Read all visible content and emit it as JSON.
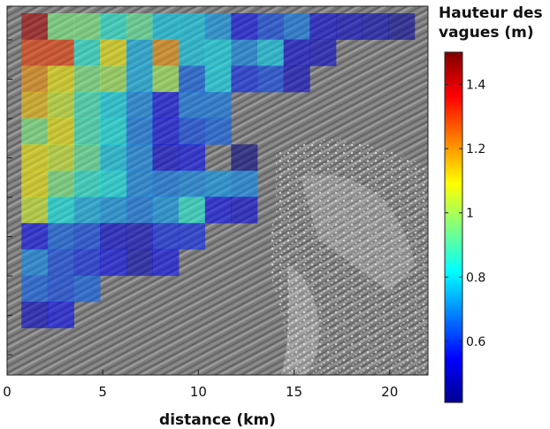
{
  "chart_data": {
    "type": "heatmap",
    "xlabel": "distance (km)",
    "ylabel": "",
    "xlim": [
      0,
      22
    ],
    "x_ticks": [
      0,
      5,
      10,
      15,
      20
    ],
    "cell_size_km": 1.37,
    "colorbar": {
      "title_lines": [
        "Hauteur des",
        "vagues (m)"
      ],
      "range": [
        0.41,
        1.5
      ],
      "ticks": [
        0.6,
        0.8,
        1,
        1.2,
        1.4
      ],
      "tick_labels": [
        "0.6",
        "0.8",
        "1",
        "1.2",
        "1.4"
      ],
      "colormap": "jet"
    },
    "grid_rows_top_to_bottom": [
      [
        1.45,
        0.95,
        0.95,
        0.85,
        0.92,
        0.78,
        0.78,
        0.72,
        0.55,
        0.62,
        0.68,
        0.52,
        0.5,
        0.48,
        0.45
      ],
      [
        1.3,
        1.3,
        0.85,
        1.1,
        0.75,
        1.2,
        0.78,
        0.8,
        0.7,
        0.78,
        0.52,
        0.5,
        null,
        null,
        null
      ],
      [
        1.2,
        1.1,
        0.95,
        1.0,
        0.75,
        1.0,
        0.65,
        0.8,
        0.58,
        0.62,
        0.5,
        null,
        null,
        null,
        null
      ],
      [
        1.15,
        1.05,
        0.88,
        0.8,
        0.7,
        0.55,
        0.68,
        0.68,
        null,
        null,
        null,
        null,
        null,
        null,
        null
      ],
      [
        0.95,
        1.1,
        0.88,
        0.82,
        0.68,
        0.55,
        0.62,
        0.65,
        null,
        null,
        null,
        null,
        null,
        null,
        null
      ],
      [
        1.1,
        1.05,
        0.92,
        0.78,
        0.7,
        0.52,
        0.55,
        null,
        0.42,
        null,
        null,
        null,
        null,
        null,
        null
      ],
      [
        1.1,
        0.95,
        0.85,
        0.82,
        0.7,
        0.68,
        0.7,
        0.72,
        0.7,
        null,
        null,
        null,
        null,
        null,
        null
      ],
      [
        1.05,
        0.82,
        0.75,
        0.72,
        0.68,
        0.72,
        0.85,
        0.55,
        0.52,
        null,
        null,
        null,
        null,
        null,
        null
      ],
      [
        0.55,
        0.65,
        0.62,
        0.52,
        0.5,
        0.58,
        0.58,
        null,
        null,
        null,
        null,
        null,
        null,
        null,
        null
      ],
      [
        0.7,
        0.62,
        0.58,
        0.55,
        0.48,
        0.55,
        null,
        null,
        null,
        null,
        null,
        null,
        null,
        null,
        null
      ],
      [
        0.65,
        0.62,
        0.65,
        null,
        null,
        null,
        null,
        null,
        null,
        null,
        null,
        null,
        null,
        null,
        null
      ],
      [
        0.5,
        0.55,
        null,
        null,
        null,
        null,
        null,
        null,
        null,
        null,
        null,
        null,
        null,
        null,
        null
      ]
    ]
  }
}
